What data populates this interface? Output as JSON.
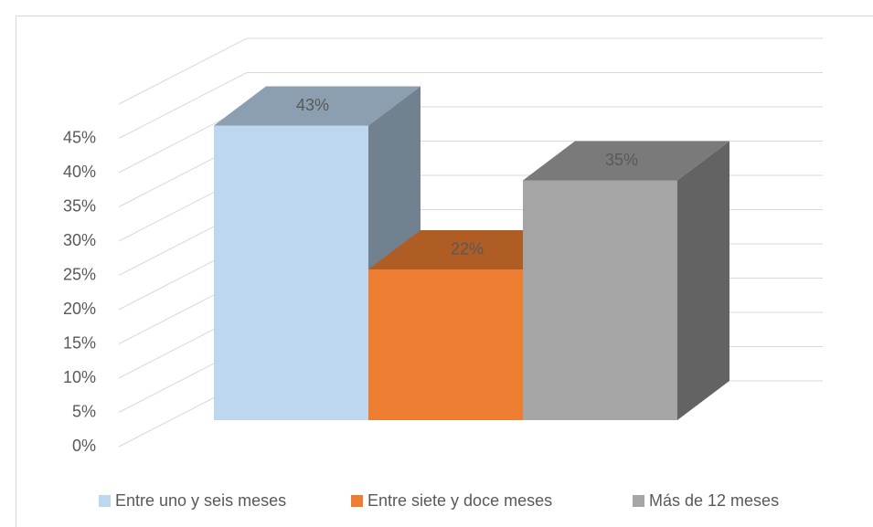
{
  "chart_data": {
    "type": "bar3d",
    "categories": [
      "Entre uno y seis meses",
      "Entre siete y doce meses",
      "Más de 12 meses"
    ],
    "values": [
      43,
      22,
      35
    ],
    "value_labels": [
      "43%",
      "22%",
      "35%"
    ],
    "colors": [
      "#bdd7ee",
      "#ed7d31",
      "#a5a5a5"
    ],
    "ylim": [
      0,
      50
    ],
    "yticks": [
      {
        "value": 0,
        "label": "0%"
      },
      {
        "value": 5,
        "label": "5%"
      },
      {
        "value": 10,
        "label": "10%"
      },
      {
        "value": 15,
        "label": "15%"
      },
      {
        "value": 20,
        "label": "20%"
      },
      {
        "value": 25,
        "label": "25%"
      },
      {
        "value": 30,
        "label": "30%"
      },
      {
        "value": 35,
        "label": "35%"
      },
      {
        "value": 40,
        "label": "40%"
      },
      {
        "value": 45,
        "label": "45%"
      }
    ],
    "grid": true,
    "legend": "bottom"
  }
}
